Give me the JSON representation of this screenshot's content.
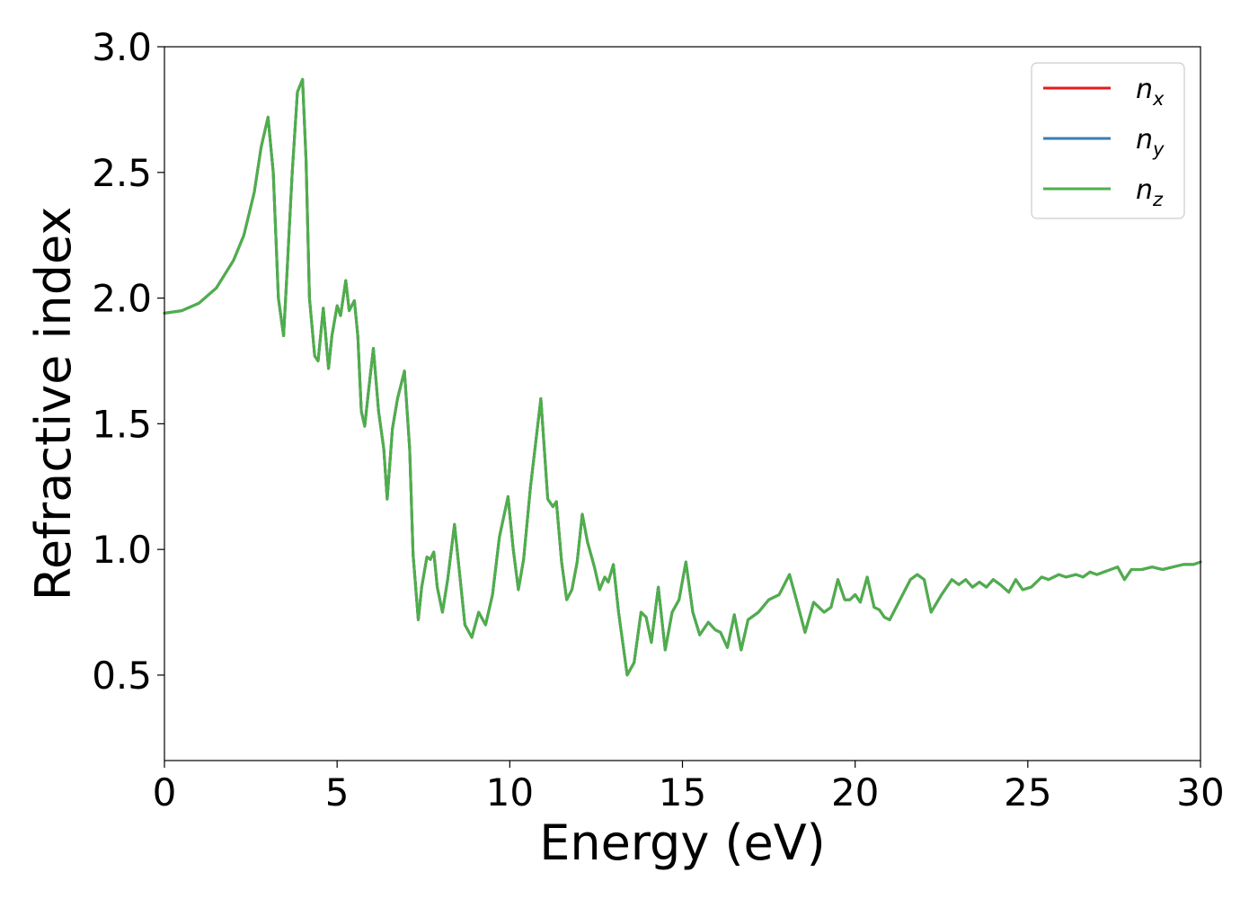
{
  "chart_data": {
    "type": "line",
    "xlabel": "Energy (eV)",
    "ylabel": "Refractive index",
    "xlim": [
      0,
      30
    ],
    "ylim": [
      0.16,
      3.0
    ],
    "xticks": [
      "0",
      "5",
      "10",
      "15",
      "20",
      "25",
      "30"
    ],
    "yticks": [
      "0.5",
      "1.0",
      "1.5",
      "2.0",
      "2.5",
      "3.0"
    ],
    "grid": false,
    "legend_position": "top-right",
    "series": [
      {
        "name": "n_x",
        "legend_base": "n",
        "legend_sub": "x",
        "color": "#e41a1c"
      },
      {
        "name": "n_y",
        "legend_base": "n",
        "legend_sub": "y",
        "color": "#377eb8"
      },
      {
        "name": "n_z",
        "legend_base": "n",
        "legend_sub": "z",
        "color": "#4daf4a"
      }
    ],
    "x": [
      0,
      0.5,
      1.0,
      1.5,
      2.0,
      2.3,
      2.6,
      2.8,
      3.0,
      3.15,
      3.3,
      3.45,
      3.55,
      3.7,
      3.85,
      4.0,
      4.1,
      4.2,
      4.35,
      4.45,
      4.6,
      4.75,
      4.85,
      5.0,
      5.1,
      5.25,
      5.35,
      5.5,
      5.6,
      5.7,
      5.8,
      5.9,
      6.05,
      6.2,
      6.35,
      6.45,
      6.6,
      6.75,
      6.95,
      7.1,
      7.2,
      7.35,
      7.45,
      7.6,
      7.7,
      7.8,
      7.9,
      8.05,
      8.2,
      8.4,
      8.55,
      8.7,
      8.9,
      9.1,
      9.3,
      9.5,
      9.7,
      9.95,
      10.1,
      10.25,
      10.4,
      10.6,
      10.9,
      11.1,
      11.25,
      11.35,
      11.5,
      11.65,
      11.8,
      11.95,
      12.1,
      12.25,
      12.45,
      12.6,
      12.75,
      12.85,
      13.0,
      13.15,
      13.4,
      13.6,
      13.8,
      13.95,
      14.1,
      14.3,
      14.5,
      14.7,
      14.9,
      15.1,
      15.3,
      15.5,
      15.75,
      15.95,
      16.1,
      16.3,
      16.5,
      16.7,
      16.9,
      17.2,
      17.5,
      17.8,
      18.1,
      18.3,
      18.55,
      18.8,
      19.1,
      19.3,
      19.5,
      19.7,
      19.85,
      20.0,
      20.15,
      20.35,
      20.55,
      20.7,
      20.85,
      21.0,
      21.3,
      21.6,
      21.8,
      22.0,
      22.2,
      22.5,
      22.8,
      23.0,
      23.2,
      23.4,
      23.6,
      23.8,
      24.0,
      24.2,
      24.45,
      24.65,
      24.85,
      25.1,
      25.4,
      25.6,
      25.9,
      26.1,
      26.4,
      26.6,
      26.8,
      27.0,
      27.2,
      27.4,
      27.6,
      27.8,
      28.0,
      28.3,
      28.6,
      28.9,
      29.2,
      29.5,
      29.8,
      30.0
    ],
    "y": [
      1.94,
      1.95,
      1.98,
      2.04,
      2.15,
      2.25,
      2.42,
      2.6,
      2.72,
      2.5,
      2.0,
      1.85,
      2.1,
      2.5,
      2.82,
      2.87,
      2.55,
      2.0,
      1.77,
      1.75,
      1.96,
      1.72,
      1.85,
      1.97,
      1.93,
      2.07,
      1.95,
      1.99,
      1.85,
      1.55,
      1.49,
      1.62,
      1.8,
      1.55,
      1.4,
      1.2,
      1.48,
      1.6,
      1.71,
      1.4,
      0.98,
      0.72,
      0.85,
      0.97,
      0.96,
      0.99,
      0.85,
      0.75,
      0.88,
      1.1,
      0.9,
      0.7,
      0.65,
      0.75,
      0.7,
      0.82,
      1.05,
      1.21,
      1.0,
      0.84,
      0.96,
      1.25,
      1.6,
      1.2,
      1.17,
      1.19,
      0.95,
      0.8,
      0.84,
      0.95,
      1.14,
      1.03,
      0.93,
      0.84,
      0.89,
      0.87,
      0.94,
      0.75,
      0.5,
      0.55,
      0.75,
      0.73,
      0.63,
      0.85,
      0.6,
      0.75,
      0.8,
      0.95,
      0.75,
      0.66,
      0.71,
      0.68,
      0.67,
      0.61,
      0.74,
      0.6,
      0.72,
      0.75,
      0.8,
      0.82,
      0.9,
      0.8,
      0.67,
      0.79,
      0.75,
      0.77,
      0.88,
      0.8,
      0.8,
      0.82,
      0.79,
      0.89,
      0.77,
      0.76,
      0.73,
      0.72,
      0.8,
      0.88,
      0.9,
      0.88,
      0.75,
      0.82,
      0.88,
      0.86,
      0.88,
      0.85,
      0.87,
      0.85,
      0.88,
      0.86,
      0.83,
      0.88,
      0.84,
      0.85,
      0.89,
      0.88,
      0.9,
      0.89,
      0.9,
      0.89,
      0.91,
      0.9,
      0.91,
      0.92,
      0.93,
      0.88,
      0.92,
      0.92,
      0.93,
      0.92,
      0.93,
      0.94,
      0.94,
      0.95
    ]
  }
}
